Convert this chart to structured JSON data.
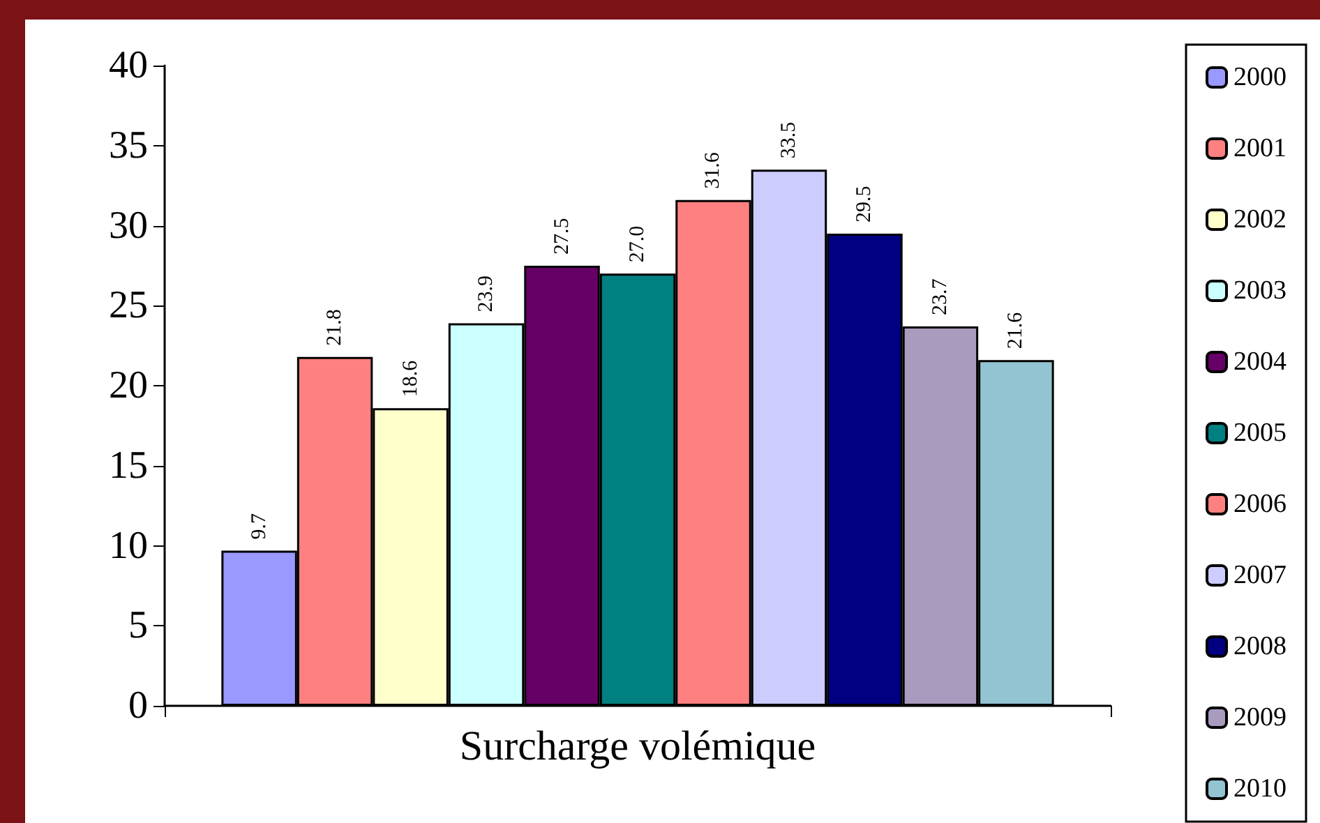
{
  "chart_data": {
    "type": "bar",
    "categories": [
      "Surcharge volémique"
    ],
    "series": [
      {
        "name": "2000",
        "color": "#9999ff",
        "values": [
          9.7
        ],
        "value_labels": [
          "9.7"
        ]
      },
      {
        "name": "2001",
        "color": "#ff8080",
        "values": [
          21.8
        ],
        "value_labels": [
          "21.8"
        ]
      },
      {
        "name": "2002",
        "color": "#ffffcc",
        "values": [
          18.6
        ],
        "value_labels": [
          "18.6"
        ]
      },
      {
        "name": "2003",
        "color": "#ccffff",
        "values": [
          23.9
        ],
        "value_labels": [
          "23.9"
        ]
      },
      {
        "name": "2004",
        "color": "#660066",
        "values": [
          27.5
        ],
        "value_labels": [
          "27.5"
        ]
      },
      {
        "name": "2005",
        "color": "#008080",
        "values": [
          27.0
        ],
        "value_labels": [
          "27.0"
        ]
      },
      {
        "name": "2006",
        "color": "#ff8080",
        "values": [
          31.6
        ],
        "value_labels": [
          "31.6"
        ]
      },
      {
        "name": "2007",
        "color": "#ccccff",
        "values": [
          33.5
        ],
        "value_labels": [
          "33.5"
        ]
      },
      {
        "name": "2008",
        "color": "#000080",
        "values": [
          29.5
        ],
        "value_labels": [
          "29.5"
        ]
      },
      {
        "name": "2009",
        "color": "#a99bbd",
        "values": [
          23.7
        ],
        "value_labels": [
          "23.7"
        ]
      },
      {
        "name": "2010",
        "color": "#93c4d2",
        "values": [
          21.6
        ],
        "value_labels": [
          "21.6"
        ]
      }
    ],
    "ylim": [
      0,
      40
    ],
    "yticks": [
      0,
      5,
      10,
      15,
      20,
      25,
      30,
      35,
      40
    ],
    "legend": "right",
    "grid": false
  }
}
